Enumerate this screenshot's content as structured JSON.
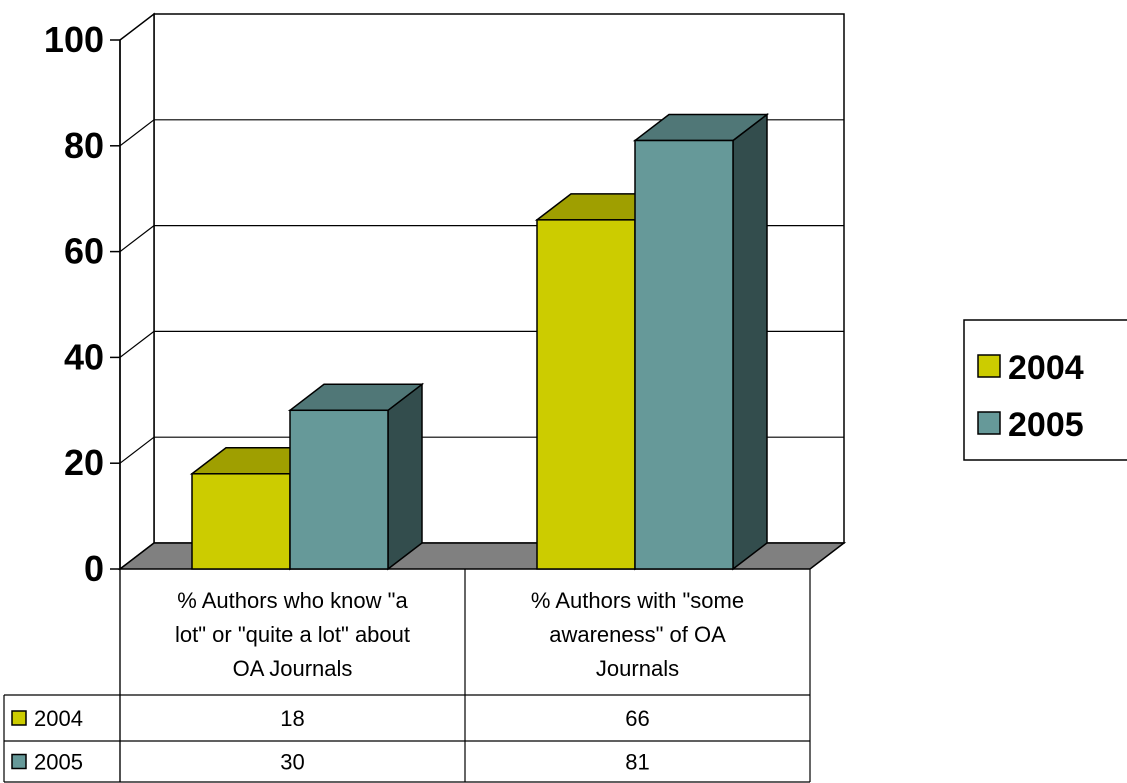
{
  "chart_data": {
    "type": "bar",
    "categories": [
      [
        "% Authors who know \"a",
        "lot\" or \"quite a lot\" about",
        "OA Journals"
      ],
      [
        "% Authors with \"some",
        "awareness\" of OA",
        "Journals"
      ]
    ],
    "series": [
      {
        "name": "2004",
        "values": [
          18,
          66
        ],
        "color": "#cccc00"
      },
      {
        "name": "2005",
        "values": [
          30,
          81
        ],
        "color": "#669999"
      }
    ],
    "table_values": [
      [
        "18",
        "66"
      ],
      [
        "30",
        "81"
      ]
    ],
    "yticks": [
      "0",
      "20",
      "40",
      "60",
      "80",
      "100"
    ],
    "ylim": [
      0,
      100
    ],
    "grid": true,
    "legend_position": "right",
    "data_table": true,
    "title": "",
    "xlabel": "",
    "ylabel": ""
  }
}
